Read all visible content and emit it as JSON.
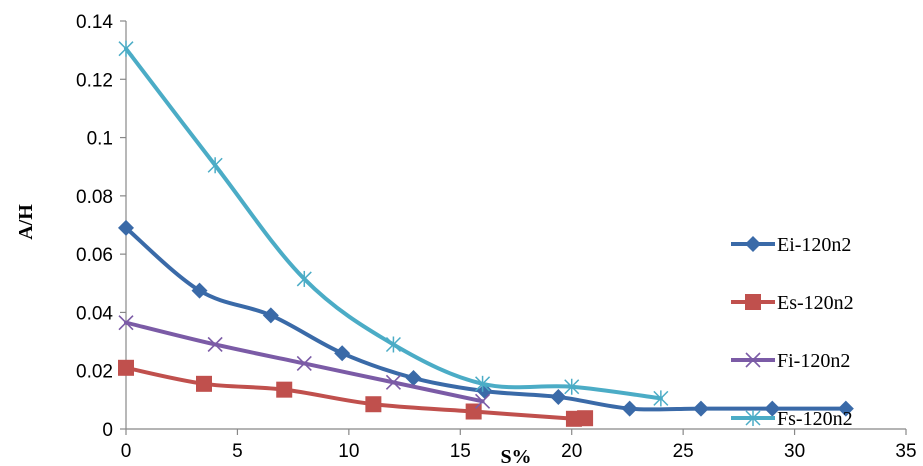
{
  "chart_data": {
    "type": "line",
    "title": "",
    "xlabel": "S%",
    "ylabel": "A/H",
    "xlim": [
      0,
      35
    ],
    "ylim": [
      0,
      0.14
    ],
    "x_ticks": [
      0,
      5,
      10,
      15,
      20,
      25,
      30,
      35
    ],
    "y_ticks": [
      0,
      0.02,
      0.04,
      0.06,
      0.08,
      0.1,
      0.12,
      0.14
    ],
    "x_tick_labels": [
      "0",
      "5",
      "10",
      "15",
      "20",
      "25",
      "30",
      "35"
    ],
    "y_tick_labels": [
      "0",
      "0.02",
      "0.04",
      "0.06",
      "0.08",
      "0.1",
      "0.12",
      "0.14"
    ],
    "grid": false,
    "legend_position": "right",
    "series": [
      {
        "name": "Ei-120n2",
        "color": "#3a6aa8",
        "marker": "diamond",
        "x": [
          0,
          3.3,
          6.5,
          9.7,
          12.9,
          16.1,
          19.4,
          22.6,
          25.8,
          29.0,
          32.3
        ],
        "y": [
          0.069,
          0.0475,
          0.039,
          0.026,
          0.0175,
          0.013,
          0.011,
          0.007,
          0.007,
          0.007,
          0.007
        ]
      },
      {
        "name": "Es-120n2",
        "color": "#c0504d",
        "marker": "square",
        "x": [
          0,
          3.5,
          7.1,
          11.1,
          15.6,
          20.1,
          20.6
        ],
        "y": [
          0.021,
          0.0155,
          0.0135,
          0.0085,
          0.006,
          0.0035,
          0.0037
        ]
      },
      {
        "name": "Fi-120n2",
        "color": "#7b5ba6",
        "marker": "x",
        "x": [
          0,
          4,
          8,
          12,
          16
        ],
        "y": [
          0.0365,
          0.029,
          0.0225,
          0.016,
          0.0095
        ]
      },
      {
        "name": "Fs-120n2",
        "color": "#4bacc6",
        "marker": "star",
        "x": [
          0,
          4,
          8,
          12,
          16,
          20,
          24
        ],
        "y": [
          0.1305,
          0.0905,
          0.0515,
          0.029,
          0.0155,
          0.0145,
          0.0105
        ]
      }
    ]
  }
}
